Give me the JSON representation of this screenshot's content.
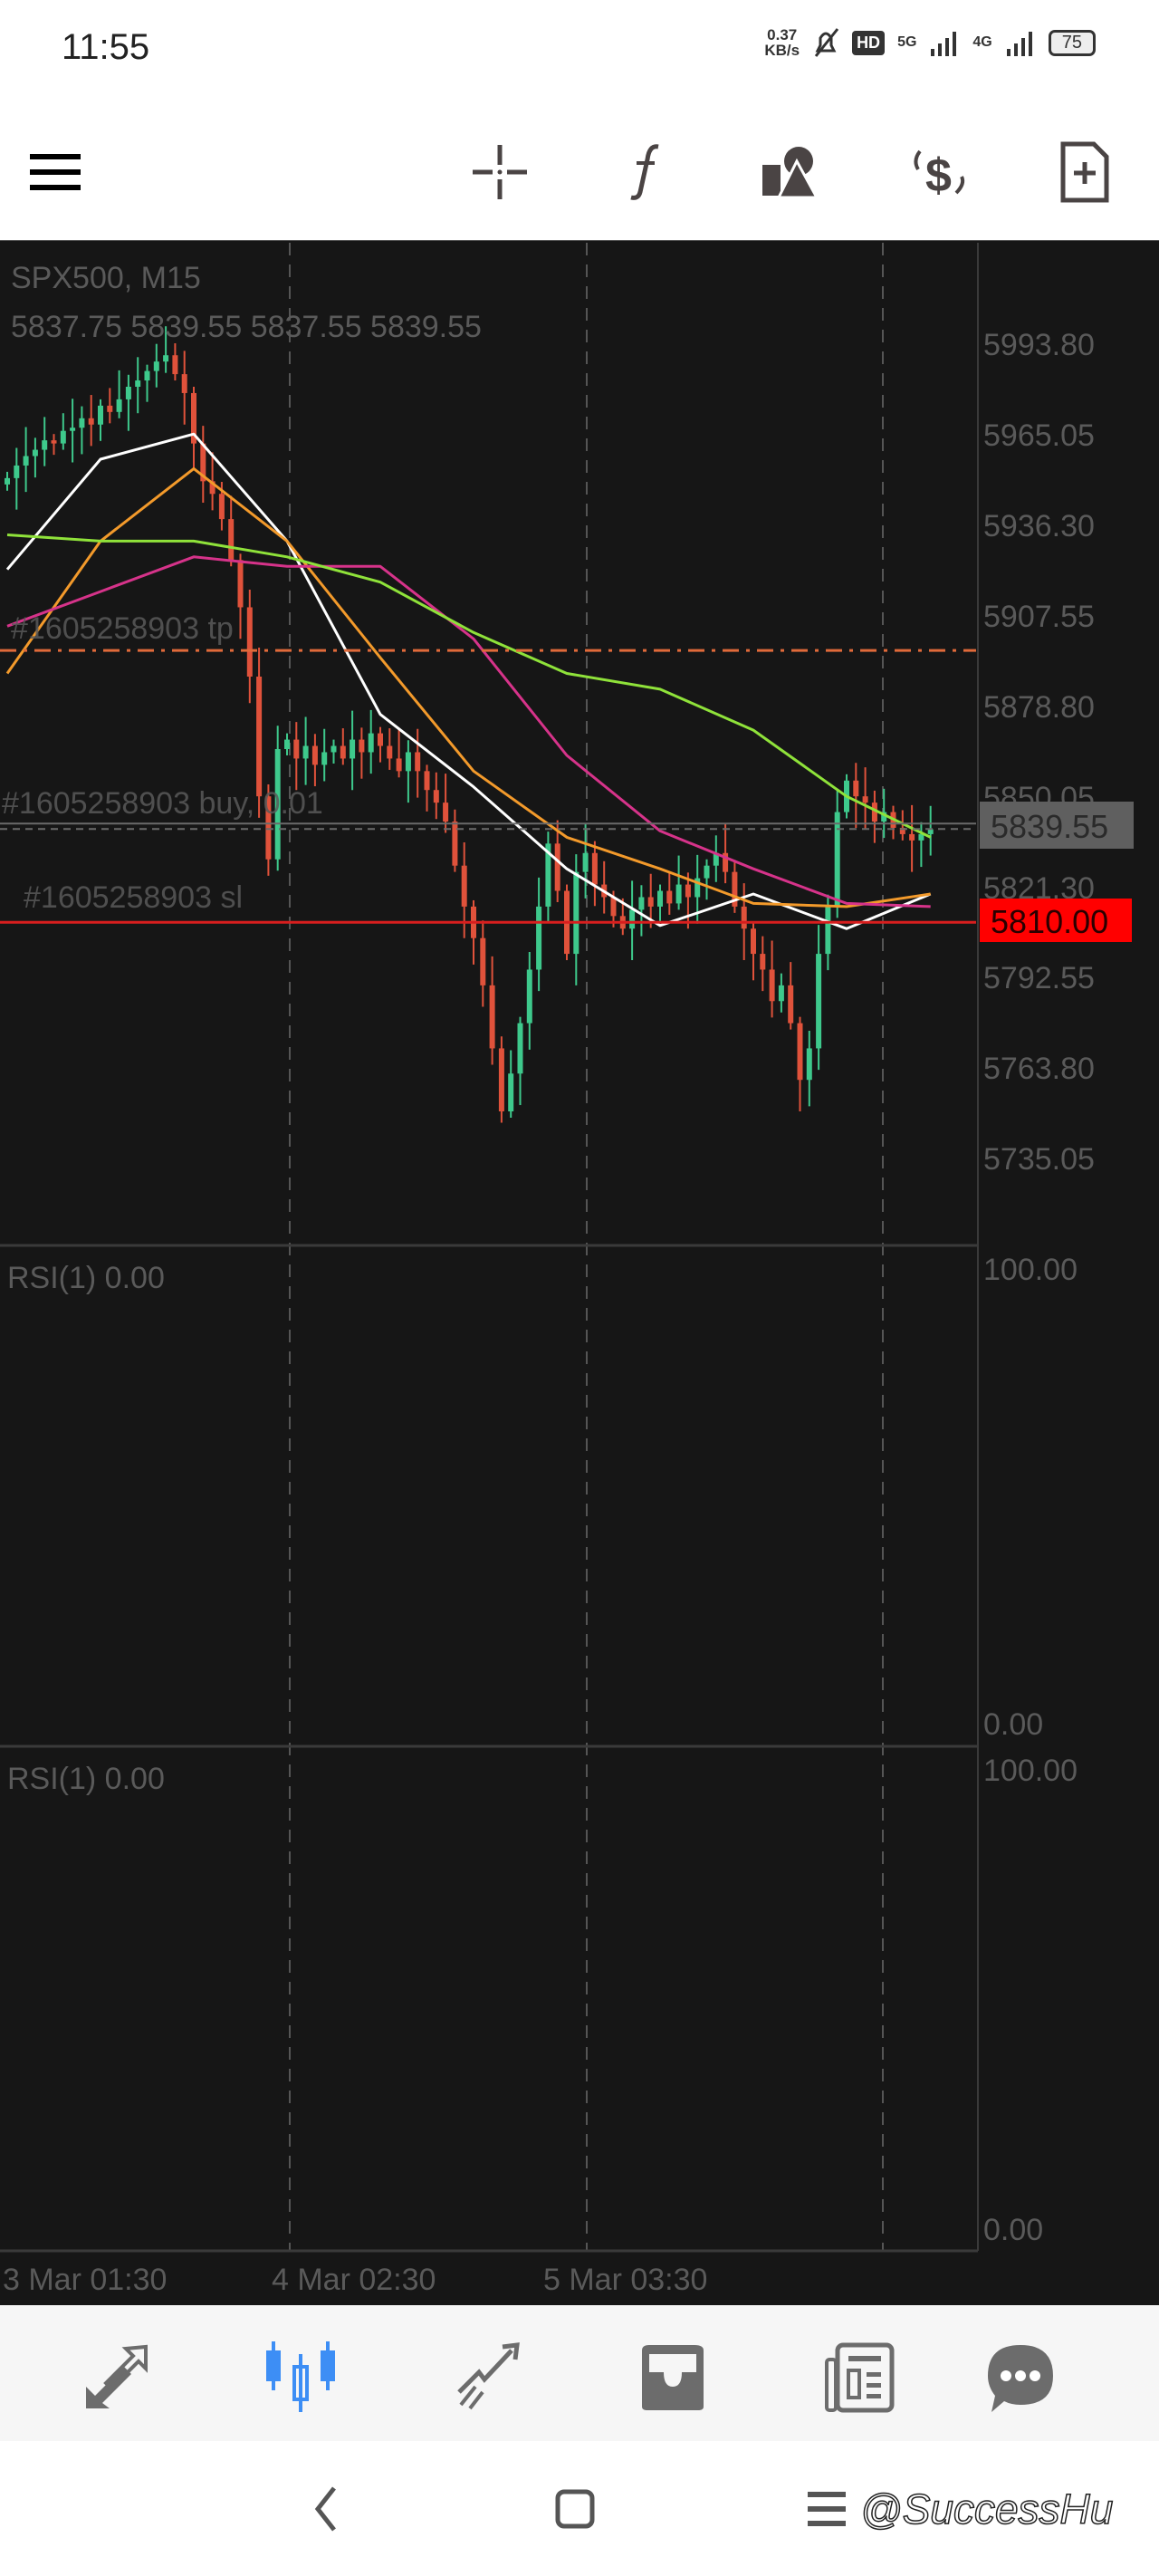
{
  "status_bar": {
    "time": "11:55",
    "net_speed": "0.37",
    "net_unit": "KB/s",
    "hd": "HD",
    "net1": "5G",
    "net2": "4G",
    "battery": "75"
  },
  "toolbar": {
    "icons": [
      "menu-icon",
      "crosshair-icon",
      "indicators-icon",
      "objects-icon",
      "trade-icon",
      "new-order-icon"
    ]
  },
  "chart": {
    "symbol": "SPX500, M15",
    "ohlc": "5837.75 5839.55 5837.55 5839.55",
    "current_price": "5839.55",
    "sl_price": "5810.00",
    "tp_label": "#1605258903 tp",
    "buy_label": "#1605258903 buy, 0.01",
    "sl_label": "#1605258903 sl",
    "price_ticks": [
      "5993.80",
      "5965.05",
      "5936.30",
      "5907.55",
      "5878.80",
      "5850.05",
      "5821.30",
      "5792.55",
      "5763.80",
      "5735.05"
    ],
    "time_labels": [
      "3 Mar 01:30",
      "4 Mar 02:30",
      "5 Mar 03:30"
    ],
    "rsi1": {
      "label": "RSI(1) 0.00",
      "max": "100.00",
      "min": "0.00"
    },
    "rsi2": {
      "label": "RSI(1) 0.00",
      "max": "100.00",
      "min": "0.00"
    },
    "colors": {
      "background": "#161616",
      "bull": "#3ec98c",
      "bear": "#e0523b",
      "tp": "#e06a3a",
      "sl": "#d81e1e",
      "sl_badge": "#ff0000",
      "price_badge": "#5f5f5f",
      "active_nav": "#3d8ef5"
    }
  },
  "chart_data": {
    "type": "candlestick",
    "symbol": "SPX500",
    "timeframe": "M15",
    "ylim": [
      5725,
      6000
    ],
    "grid": true,
    "closes": [
      5951,
      5955,
      5958,
      5960,
      5963,
      5962,
      5966,
      5967,
      5970,
      5968,
      5974,
      5972,
      5976,
      5980,
      5982,
      5985,
      5988,
      5990,
      5984,
      5978,
      5962,
      5950,
      5946,
      5938,
      5925,
      5910,
      5888,
      5850,
      5830,
      5865,
      5868,
      5862,
      5866,
      5860,
      5864,
      5866,
      5862,
      5868,
      5864,
      5870,
      5866,
      5862,
      5858,
      5864,
      5858,
      5852,
      5848,
      5842,
      5828,
      5815,
      5805,
      5790,
      5770,
      5750,
      5762,
      5778,
      5795,
      5815,
      5835,
      5820,
      5800,
      5826,
      5832,
      5822,
      5818,
      5812,
      5808,
      5814,
      5818,
      5815,
      5820,
      5816,
      5822,
      5818,
      5824,
      5828,
      5832,
      5826,
      5815,
      5808,
      5800,
      5795,
      5785,
      5790,
      5778,
      5760,
      5770,
      5800,
      5815,
      5845,
      5855,
      5850,
      5848,
      5842,
      5845,
      5840,
      5838,
      5836,
      5838,
      5839.55
    ],
    "moving_averages": [
      {
        "color": "#ffffff",
        "values": [
          5922,
          5957,
          5965,
          5931,
          5876,
          5853,
          5827,
          5809,
          5819,
          5808,
          5819
        ]
      },
      {
        "color": "#f39a2b",
        "values": [
          5889,
          5931,
          5954,
          5931,
          5894,
          5858,
          5837,
          5827,
          5816,
          5815,
          5819
        ]
      },
      {
        "color": "#d6338a",
        "values": [
          5904,
          5915,
          5926,
          5923,
          5923,
          5900,
          5863,
          5839,
          5827,
          5816,
          5815
        ]
      },
      {
        "color": "#8fe23a",
        "values": [
          5933,
          5931,
          5931,
          5926,
          5918,
          5902,
          5889,
          5884,
          5871,
          5850,
          5837
        ]
      }
    ],
    "levels": {
      "tp": 5896.3,
      "entry": 5840.5,
      "sl": 5810.0
    }
  },
  "bottom_nav": {
    "items": [
      {
        "icon": "quotes-icon",
        "active": false
      },
      {
        "icon": "chart-icon",
        "active": true
      },
      {
        "icon": "trade-icon",
        "active": false
      },
      {
        "icon": "history-icon",
        "active": false
      },
      {
        "icon": "news-icon",
        "active": false
      },
      {
        "icon": "chat-icon",
        "active": false
      }
    ]
  },
  "watermark": "@SuccessHu"
}
